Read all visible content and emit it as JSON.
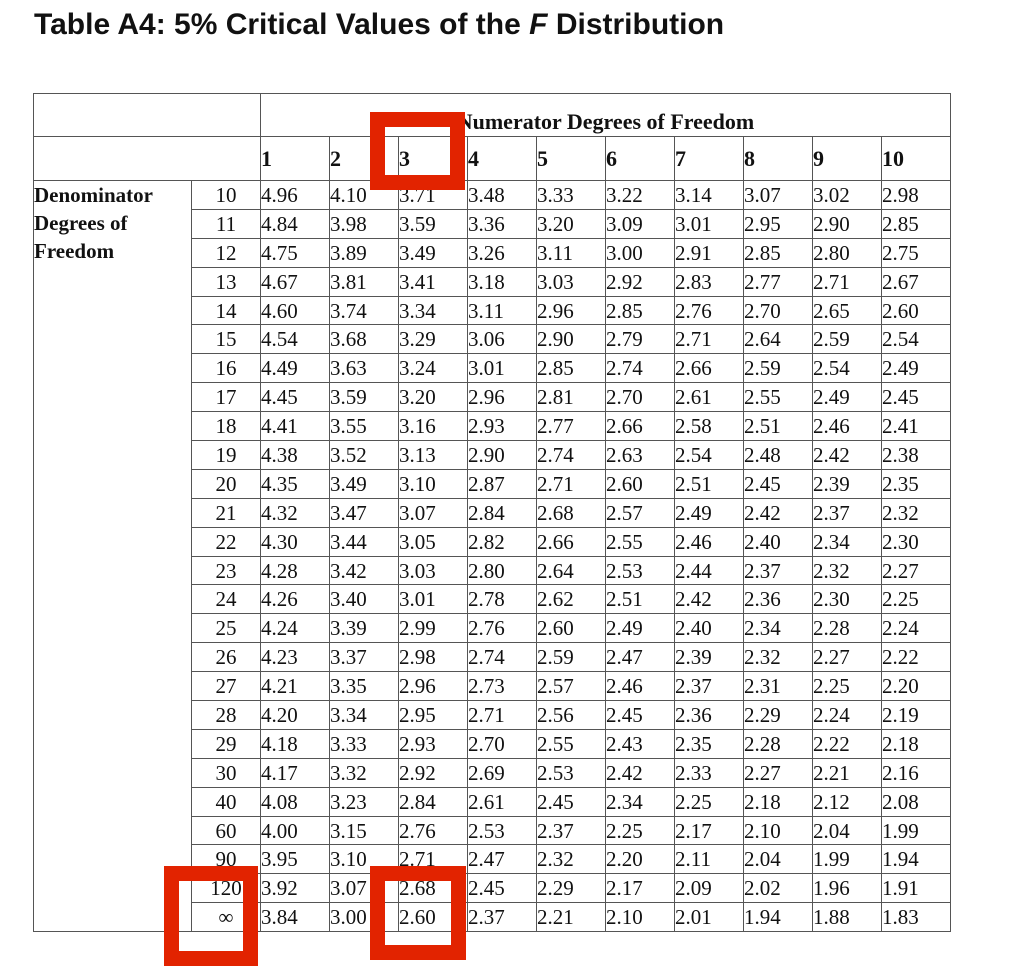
{
  "title": {
    "prefix": "Table A4: 5% Critical Values of the ",
    "italic": "F",
    "suffix": " Distribution"
  },
  "table": {
    "numerator_label": "Numerator Degrees of Freedom",
    "denominator_label": [
      "Denominator",
      "Degrees of",
      "Freedom"
    ],
    "columns": [
      "1",
      "2",
      "3",
      "4",
      "5",
      "6",
      "7",
      "8",
      "9",
      "10"
    ],
    "rows": [
      {
        "df": "10",
        "values": [
          "4.96",
          "4.10",
          "3.71",
          "3.48",
          "3.33",
          "3.22",
          "3.14",
          "3.07",
          "3.02",
          "2.98"
        ]
      },
      {
        "df": "11",
        "values": [
          "4.84",
          "3.98",
          "3.59",
          "3.36",
          "3.20",
          "3.09",
          "3.01",
          "2.95",
          "2.90",
          "2.85"
        ]
      },
      {
        "df": "12",
        "values": [
          "4.75",
          "3.89",
          "3.49",
          "3.26",
          "3.11",
          "3.00",
          "2.91",
          "2.85",
          "2.80",
          "2.75"
        ]
      },
      {
        "df": "13",
        "values": [
          "4.67",
          "3.81",
          "3.41",
          "3.18",
          "3.03",
          "2.92",
          "2.83",
          "2.77",
          "2.71",
          "2.67"
        ]
      },
      {
        "df": "14",
        "values": [
          "4.60",
          "3.74",
          "3.34",
          "3.11",
          "2.96",
          "2.85",
          "2.76",
          "2.70",
          "2.65",
          "2.60"
        ]
      },
      {
        "df": "15",
        "values": [
          "4.54",
          "3.68",
          "3.29",
          "3.06",
          "2.90",
          "2.79",
          "2.71",
          "2.64",
          "2.59",
          "2.54"
        ]
      },
      {
        "df": "16",
        "values": [
          "4.49",
          "3.63",
          "3.24",
          "3.01",
          "2.85",
          "2.74",
          "2.66",
          "2.59",
          "2.54",
          "2.49"
        ]
      },
      {
        "df": "17",
        "values": [
          "4.45",
          "3.59",
          "3.20",
          "2.96",
          "2.81",
          "2.70",
          "2.61",
          "2.55",
          "2.49",
          "2.45"
        ]
      },
      {
        "df": "18",
        "values": [
          "4.41",
          "3.55",
          "3.16",
          "2.93",
          "2.77",
          "2.66",
          "2.58",
          "2.51",
          "2.46",
          "2.41"
        ]
      },
      {
        "df": "19",
        "values": [
          "4.38",
          "3.52",
          "3.13",
          "2.90",
          "2.74",
          "2.63",
          "2.54",
          "2.48",
          "2.42",
          "2.38"
        ]
      },
      {
        "df": "20",
        "values": [
          "4.35",
          "3.49",
          "3.10",
          "2.87",
          "2.71",
          "2.60",
          "2.51",
          "2.45",
          "2.39",
          "2.35"
        ]
      },
      {
        "df": "21",
        "values": [
          "4.32",
          "3.47",
          "3.07",
          "2.84",
          "2.68",
          "2.57",
          "2.49",
          "2.42",
          "2.37",
          "2.32"
        ]
      },
      {
        "df": "22",
        "values": [
          "4.30",
          "3.44",
          "3.05",
          "2.82",
          "2.66",
          "2.55",
          "2.46",
          "2.40",
          "2.34",
          "2.30"
        ]
      },
      {
        "df": "23",
        "values": [
          "4.28",
          "3.42",
          "3.03",
          "2.80",
          "2.64",
          "2.53",
          "2.44",
          "2.37",
          "2.32",
          "2.27"
        ]
      },
      {
        "df": "24",
        "values": [
          "4.26",
          "3.40",
          "3.01",
          "2.78",
          "2.62",
          "2.51",
          "2.42",
          "2.36",
          "2.30",
          "2.25"
        ]
      },
      {
        "df": "25",
        "values": [
          "4.24",
          "3.39",
          "2.99",
          "2.76",
          "2.60",
          "2.49",
          "2.40",
          "2.34",
          "2.28",
          "2.24"
        ]
      },
      {
        "df": "26",
        "values": [
          "4.23",
          "3.37",
          "2.98",
          "2.74",
          "2.59",
          "2.47",
          "2.39",
          "2.32",
          "2.27",
          "2.22"
        ]
      },
      {
        "df": "27",
        "values": [
          "4.21",
          "3.35",
          "2.96",
          "2.73",
          "2.57",
          "2.46",
          "2.37",
          "2.31",
          "2.25",
          "2.20"
        ]
      },
      {
        "df": "28",
        "values": [
          "4.20",
          "3.34",
          "2.95",
          "2.71",
          "2.56",
          "2.45",
          "2.36",
          "2.29",
          "2.24",
          "2.19"
        ]
      },
      {
        "df": "29",
        "values": [
          "4.18",
          "3.33",
          "2.93",
          "2.70",
          "2.55",
          "2.43",
          "2.35",
          "2.28",
          "2.22",
          "2.18"
        ]
      },
      {
        "df": "30",
        "values": [
          "4.17",
          "3.32",
          "2.92",
          "2.69",
          "2.53",
          "2.42",
          "2.33",
          "2.27",
          "2.21",
          "2.16"
        ]
      },
      {
        "df": "40",
        "values": [
          "4.08",
          "3.23",
          "2.84",
          "2.61",
          "2.45",
          "2.34",
          "2.25",
          "2.18",
          "2.12",
          "2.08"
        ]
      },
      {
        "df": "60",
        "values": [
          "4.00",
          "3.15",
          "2.76",
          "2.53",
          "2.37",
          "2.25",
          "2.17",
          "2.10",
          "2.04",
          "1.99"
        ]
      },
      {
        "df": "90",
        "values": [
          "3.95",
          "3.10",
          "2.71",
          "2.47",
          "2.32",
          "2.20",
          "2.11",
          "2.04",
          "1.99",
          "1.94"
        ]
      },
      {
        "df": "120",
        "values": [
          "3.92",
          "3.07",
          "2.68",
          "2.45",
          "2.29",
          "2.17",
          "2.09",
          "2.02",
          "1.96",
          "1.91"
        ]
      },
      {
        "df": "∞",
        "values": [
          "3.84",
          "3.00",
          "2.60",
          "2.37",
          "2.21",
          "2.10",
          "2.01",
          "1.94",
          "1.88",
          "1.83"
        ]
      }
    ]
  },
  "highlights": {
    "color": "#e22300",
    "marked": [
      "column 3",
      "row ∞",
      "cell ∞ / 3"
    ]
  }
}
